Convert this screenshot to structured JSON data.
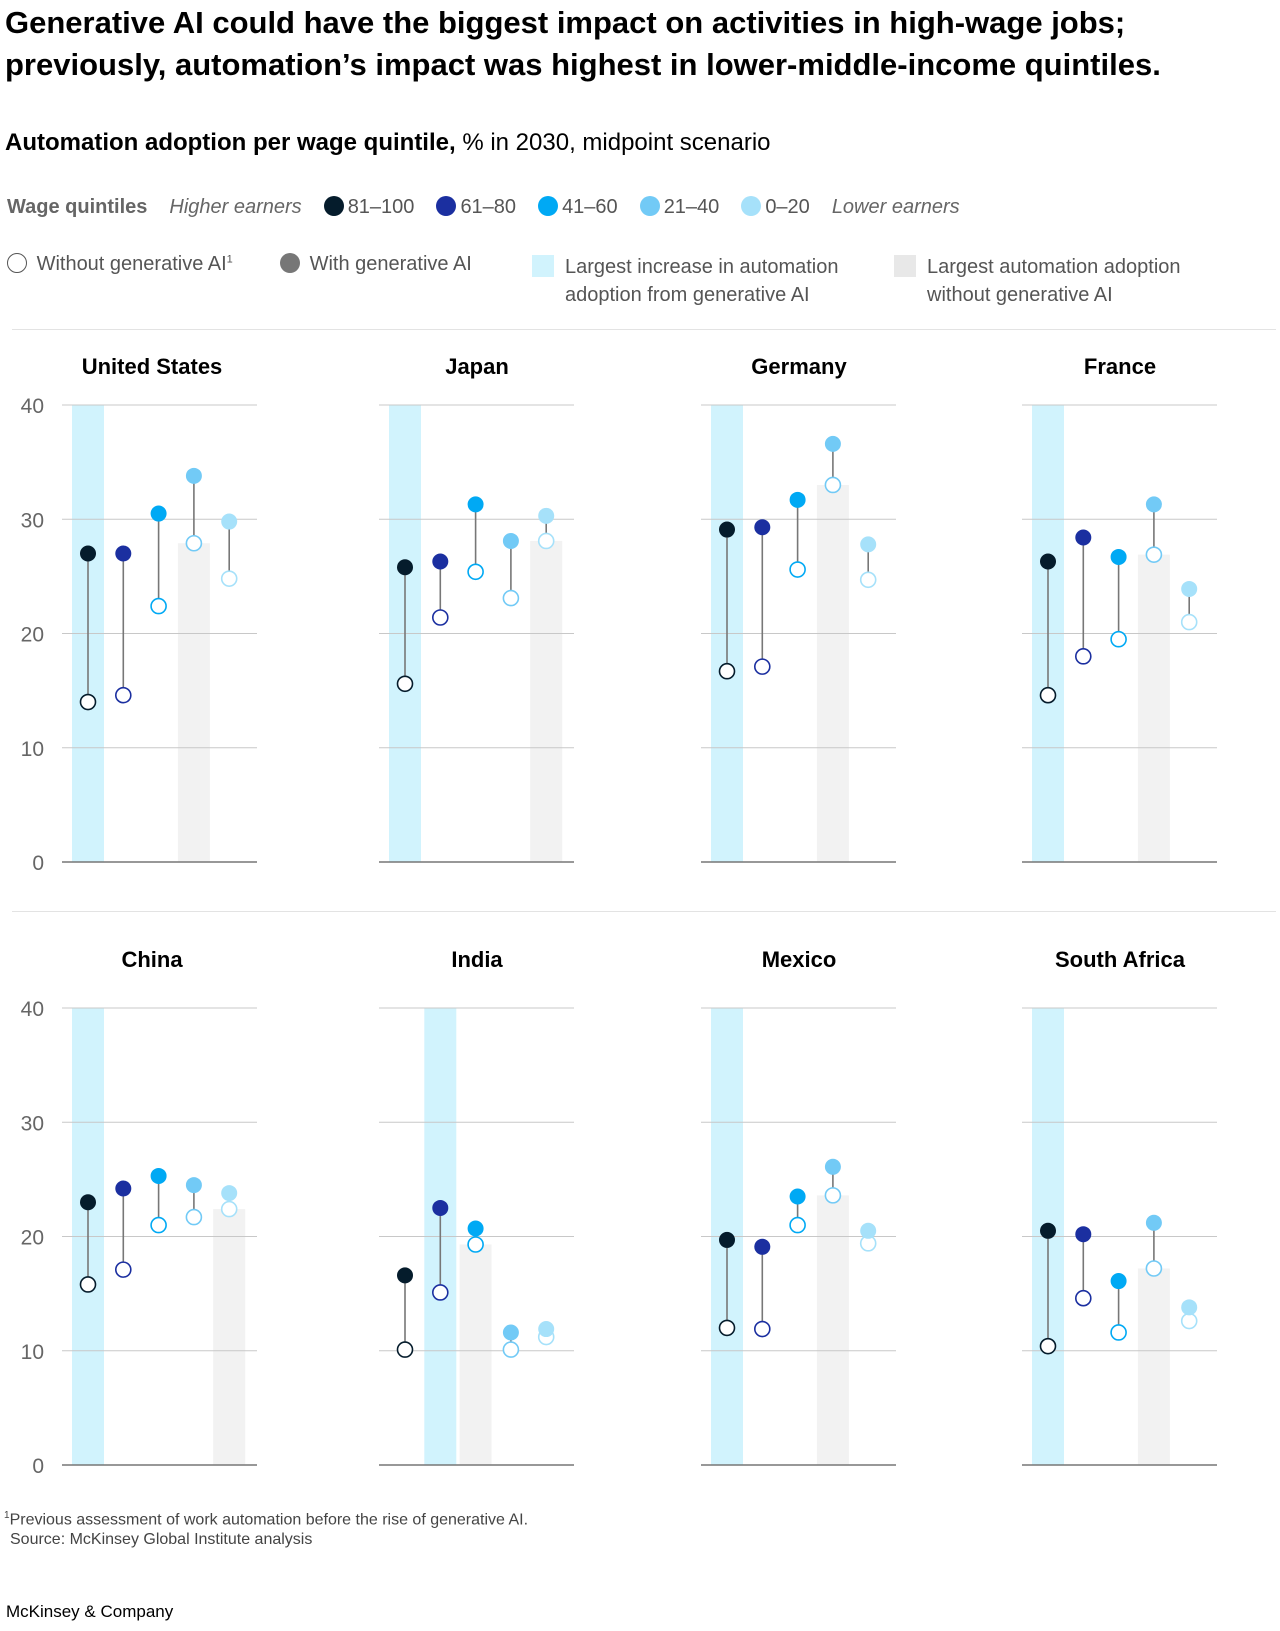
{
  "title": "Generative AI could have the biggest impact on activities in high-wage jobs; previously, automation’s impact was highest in lower-middle-income quintiles.",
  "subtitle": {
    "bold": "Automation adoption per wage quintile,",
    "rest": " % in 2030, midpoint scenario"
  },
  "legend": {
    "label": "Wage quintiles",
    "higher": "Higher earners",
    "lower": "Lower earners",
    "quintiles": [
      {
        "name": "81–100",
        "color": "#051c2c"
      },
      {
        "name": "61–80",
        "color": "#1b2fa0"
      },
      {
        "name": "41–60",
        "color": "#00a9f4"
      },
      {
        "name": "21–40",
        "color": "#72caf6"
      },
      {
        "name": "0–20",
        "color": "#a6e1fa"
      }
    ],
    "without": "Without generative AI",
    "without_sup": "1",
    "with": "With generative AI",
    "increase": [
      "Largest increase in automation",
      "adoption from generative AI"
    ],
    "largest": [
      "Largest automation adoption",
      "without generative AI"
    ],
    "increase_color": "#d1f3fd",
    "largest_color": "#f2f2f2"
  },
  "chart_data": {
    "type": "dumbbell",
    "ylim": [
      0,
      40
    ],
    "yticks": [
      "0",
      "10",
      "20",
      "30",
      "40"
    ],
    "grid": true,
    "categories": [
      "81–100",
      "61–80",
      "41–60",
      "21–40",
      "0–20"
    ],
    "panels": [
      {
        "title": "United States",
        "without": [
          14.0,
          14.6,
          22.4,
          27.9,
          24.8
        ],
        "with": [
          27.0,
          27.0,
          30.5,
          33.8,
          29.8
        ],
        "largest_increase": "81–100",
        "largest_without": "21–40"
      },
      {
        "title": "Japan",
        "without": [
          15.6,
          21.4,
          25.4,
          23.1,
          28.1
        ],
        "with": [
          25.8,
          26.3,
          31.3,
          28.1,
          30.3
        ],
        "largest_increase": "81–100",
        "largest_without": "0–20"
      },
      {
        "title": "Germany",
        "without": [
          16.7,
          17.1,
          25.6,
          33.0,
          24.7
        ],
        "with": [
          29.1,
          29.3,
          31.7,
          36.6,
          27.8
        ],
        "largest_increase": "81–100",
        "largest_without": "21–40"
      },
      {
        "title": "France",
        "without": [
          14.6,
          18.0,
          19.5,
          26.9,
          21.0
        ],
        "with": [
          26.3,
          28.4,
          26.7,
          31.3,
          23.9
        ],
        "largest_increase": "81–100",
        "largest_without": "21–40"
      },
      {
        "title": "China",
        "without": [
          15.8,
          17.1,
          21.0,
          21.7,
          22.4
        ],
        "with": [
          23.0,
          24.2,
          25.3,
          24.5,
          23.8
        ],
        "largest_increase": "81–100",
        "largest_without": "0–20"
      },
      {
        "title": "India",
        "without": [
          10.1,
          15.1,
          19.3,
          10.1,
          11.2
        ],
        "with": [
          16.6,
          22.5,
          20.7,
          11.6,
          11.9
        ],
        "largest_increase": "61–80",
        "largest_without": "41–60"
      },
      {
        "title": "Mexico",
        "without": [
          12.0,
          11.9,
          21.0,
          23.6,
          19.4
        ],
        "with": [
          19.7,
          19.1,
          23.5,
          26.1,
          20.5
        ],
        "largest_increase": "81–100",
        "largest_without": "21–40"
      },
      {
        "title": "South Africa",
        "without": [
          10.4,
          14.6,
          11.6,
          17.2,
          12.6
        ],
        "with": [
          20.5,
          20.2,
          16.1,
          21.2,
          13.8
        ],
        "largest_increase": "81–100",
        "largest_without": "21–40"
      }
    ]
  },
  "footnote": {
    "sup": "1",
    "text": "Previous assessment of work automation before the rise of generative AI."
  },
  "source": "Source: McKinsey Global Institute analysis",
  "brand": "McKinsey & Company"
}
